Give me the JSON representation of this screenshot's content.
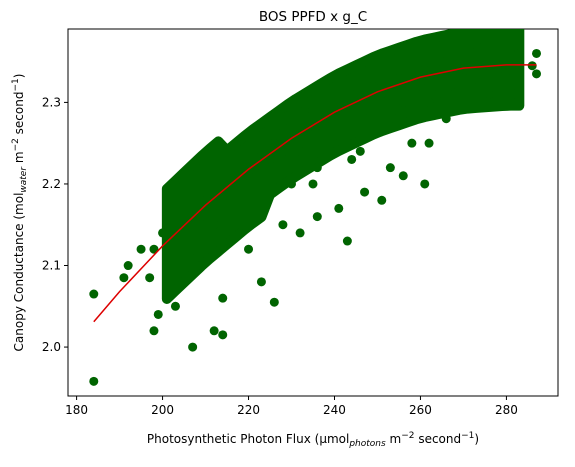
{
  "chart_data": {
    "type": "scatter",
    "title": "BOS PPFD x g_C",
    "xlabel": {
      "main": "Photosynthetic Photon Flux (µmol",
      "sub": "photons",
      "mid": " m",
      "sup1": "−2",
      "mid2": " second",
      "sup2": "−1",
      "end": ")"
    },
    "ylabel": {
      "main": "Canopy Conductance (mol",
      "sub": "water",
      "mid": " m",
      "sup1": "−2",
      "mid2": " second",
      "sup2": "−1",
      "end": ")"
    },
    "xlim": [
      178,
      292
    ],
    "ylim": [
      1.94,
      2.39
    ],
    "x_ticks": [
      180,
      200,
      220,
      240,
      260,
      280
    ],
    "y_ticks": [
      2.0,
      2.1,
      2.2,
      2.3
    ],
    "grid": false,
    "legend": "none",
    "colors": {
      "points": "#006400",
      "fit": "#dd0000"
    },
    "series": [
      {
        "kind": "points",
        "x": [
          184,
          184,
          191,
          192,
          195,
          197,
          198,
          199,
          200,
          201,
          203,
          204,
          205,
          207,
          208,
          209,
          210,
          212,
          214,
          215,
          216,
          218,
          220,
          222,
          223,
          224,
          225,
          226,
          228,
          229,
          230,
          232,
          233,
          234,
          235,
          236,
          238,
          240,
          241,
          242,
          243,
          244,
          245,
          246,
          248,
          249,
          250,
          251,
          252,
          254,
          255,
          256,
          257,
          258,
          260,
          261,
          262,
          263,
          264,
          265,
          266,
          268,
          270,
          271,
          272,
          273,
          275,
          276,
          278,
          280,
          281,
          282,
          283,
          287,
          287,
          286,
          205,
          212,
          214,
          198,
          243,
          232,
          223,
          226,
          256,
          261,
          214,
          209,
          220,
          251,
          267,
          236,
          230,
          247,
          244,
          253,
          241,
          218,
          228,
          262
        ],
        "y": [
          1.958,
          2.065,
          2.085,
          2.1,
          2.12,
          2.085,
          2.02,
          2.04,
          2.14,
          2.11,
          2.05,
          2.09,
          2.15,
          2.0,
          2.11,
          2.16,
          2.18,
          2.15,
          2.2,
          2.17,
          2.19,
          2.22,
          2.21,
          2.26,
          2.24,
          2.2,
          2.23,
          2.25,
          2.27,
          2.23,
          2.26,
          2.24,
          2.29,
          2.27,
          2.2,
          2.22,
          2.28,
          2.25,
          2.3,
          2.27,
          2.29,
          2.26,
          2.31,
          2.24,
          2.29,
          2.32,
          2.27,
          2.31,
          2.3,
          2.28,
          2.33,
          2.3,
          2.32,
          2.25,
          2.32,
          2.34,
          2.3,
          2.33,
          2.31,
          2.35,
          2.28,
          2.34,
          2.33,
          2.36,
          2.32,
          2.37,
          2.35,
          2.31,
          2.34,
          2.33,
          2.36,
          2.31,
          2.36,
          2.335,
          2.36,
          2.345,
          2.09,
          2.02,
          2.015,
          2.12,
          2.13,
          2.14,
          2.08,
          2.055,
          2.21,
          2.2,
          2.06,
          2.1,
          2.12,
          2.18,
          2.32,
          2.16,
          2.2,
          2.19,
          2.23,
          2.22,
          2.17,
          2.14,
          2.15,
          2.25
        ]
      },
      {
        "kind": "fit-line",
        "x": [
          184,
          190,
          200,
          210,
          220,
          230,
          240,
          250,
          260,
          270,
          280,
          287
        ],
        "y": [
          2.031,
          2.068,
          2.124,
          2.174,
          2.218,
          2.256,
          2.288,
          2.313,
          2.331,
          2.342,
          2.346,
          2.346
        ]
      }
    ]
  }
}
